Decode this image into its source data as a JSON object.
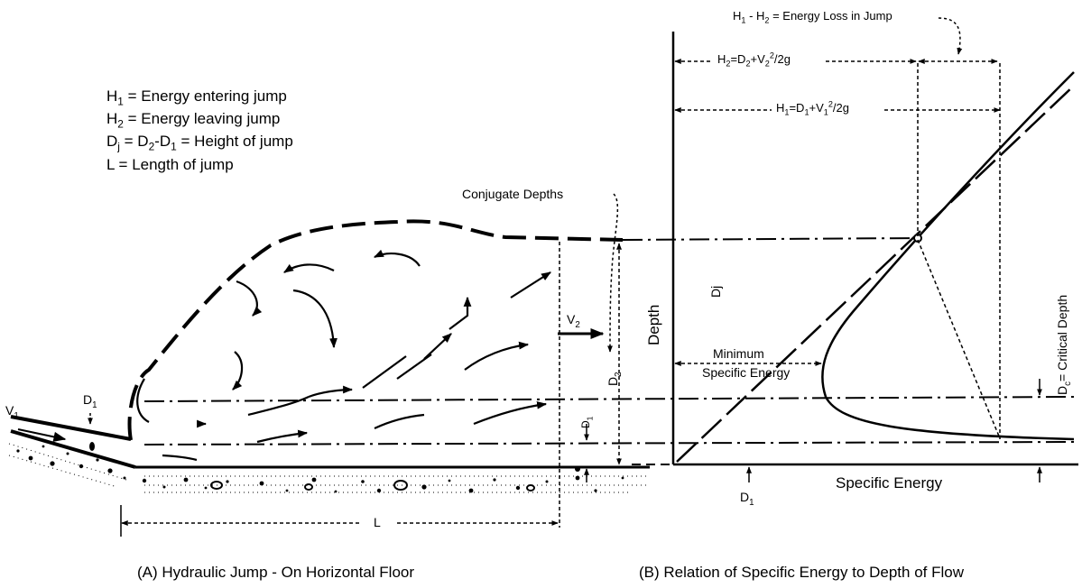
{
  "legend": {
    "h1": {
      "sym": "H",
      "sub": "1",
      "text": " = Energy entering jump"
    },
    "h2": {
      "sym": "H",
      "sub": "2",
      "text": " = Energy leaving jump"
    },
    "dj": {
      "p1": "D",
      "s1": "j",
      "p2": " = D",
      "s2": "2",
      "p3": "-D",
      "s3": "1",
      "p4": " = Height of jump"
    },
    "l": "L = Length of jump"
  },
  "panel_a": {
    "caption": "(A) Hydraulic Jump - On Horizontal Floor",
    "conjugate_depths": "Conjugate Depths",
    "v1": {
      "sym": "V",
      "sub": "1"
    },
    "v2": {
      "sym": "V",
      "sub": "2"
    },
    "d1_top": {
      "sym": "D",
      "sub": "1"
    },
    "d1_small": {
      "sym": "D",
      "sub": "1"
    },
    "d2": {
      "sym": "D",
      "sub": "2"
    },
    "l": "L"
  },
  "panel_b": {
    "caption": "(B) Relation of Specific Energy to Depth of Flow",
    "energy_loss": {
      "p1": "H",
      "s1": "1",
      "p2": " - H",
      "s2": "2",
      "p3": " = Energy Loss in Jump"
    },
    "h2_eq": {
      "p1": "H",
      "s1": "2",
      "p2": "=D",
      "s2": "2",
      "p3": "+V",
      "s3": "2",
      "sup": "2",
      "p4": "/2g"
    },
    "h1_eq": {
      "p1": "H",
      "s1": "1",
      "p2": "=D",
      "s2": "1",
      "p3": "+V",
      "s3": "1",
      "sup": "2",
      "p4": "/2g"
    },
    "depth_axis": "Depth",
    "dj": "Dj",
    "min_energy_1": "Minimum",
    "min_energy_2": "Specific Energy",
    "critical_depth": {
      "p1": "D",
      "s1": "c",
      "p2": "= Critical Depth"
    },
    "specific_energy_axis": "Specific Energy",
    "d1": {
      "sym": "D",
      "sub": "1"
    }
  }
}
